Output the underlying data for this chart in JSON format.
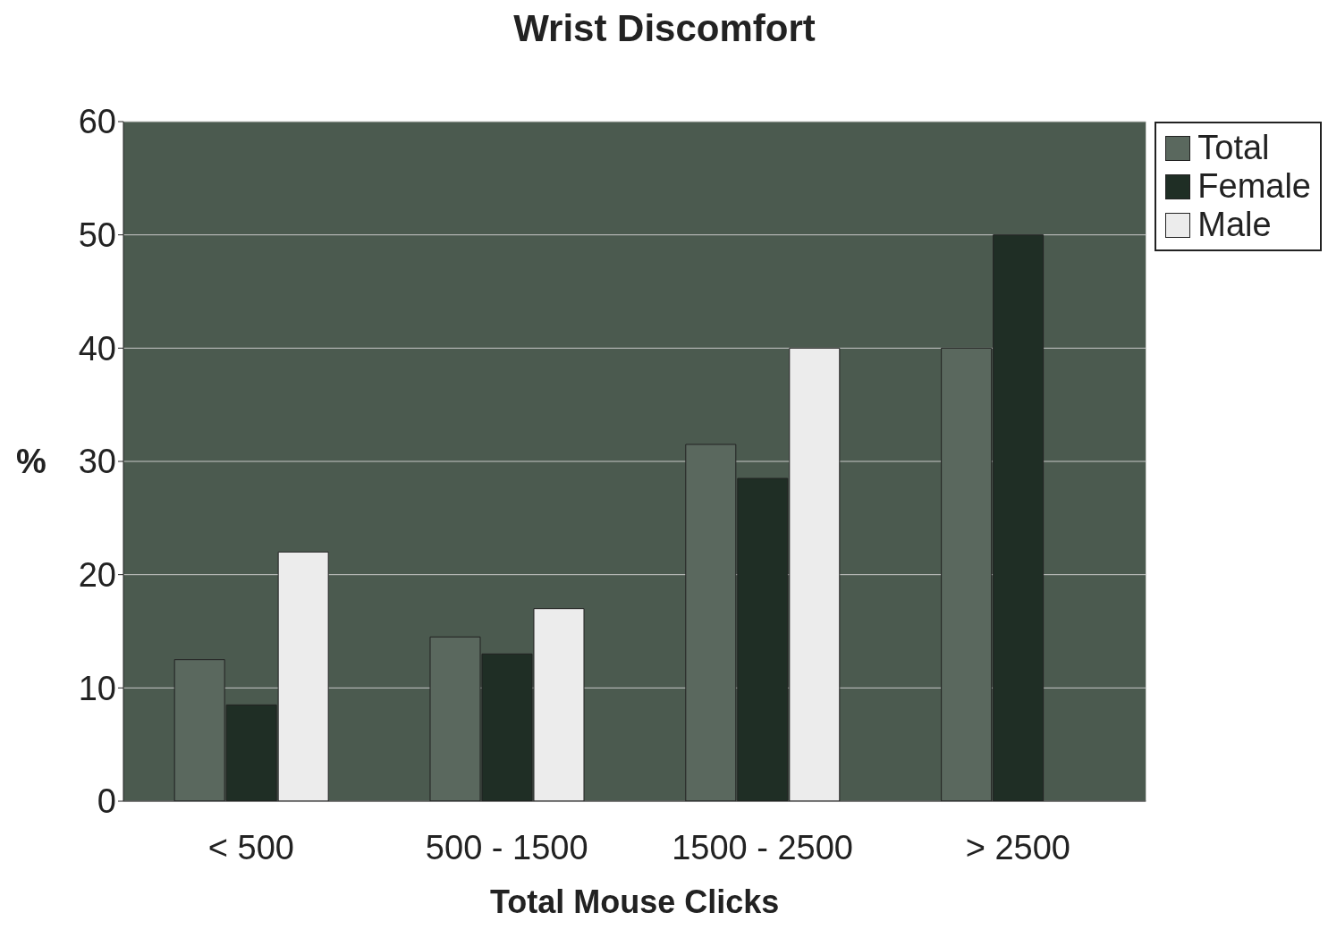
{
  "chart_data": {
    "type": "bar",
    "title": "Wrist Discomfort",
    "xlabel": "Total Mouse Clicks",
    "ylabel": "%",
    "categories": [
      "< 500",
      "500 - 1500",
      "1500 - 2500",
      "> 2500"
    ],
    "series": [
      {
        "name": "Total",
        "color": "#5a685e",
        "values": [
          12.5,
          14.5,
          31.5,
          40
        ]
      },
      {
        "name": "Female",
        "color": "#1f2e25",
        "values": [
          8.5,
          13,
          28.5,
          50
        ]
      },
      {
        "name": "Male",
        "color": "#ececec",
        "values": [
          22,
          17,
          40,
          null
        ]
      }
    ],
    "ylim": [
      0,
      60
    ],
    "yticks": [
      0,
      10,
      20,
      30,
      40,
      50,
      60
    ],
    "grid": "y",
    "legend": "top right"
  }
}
